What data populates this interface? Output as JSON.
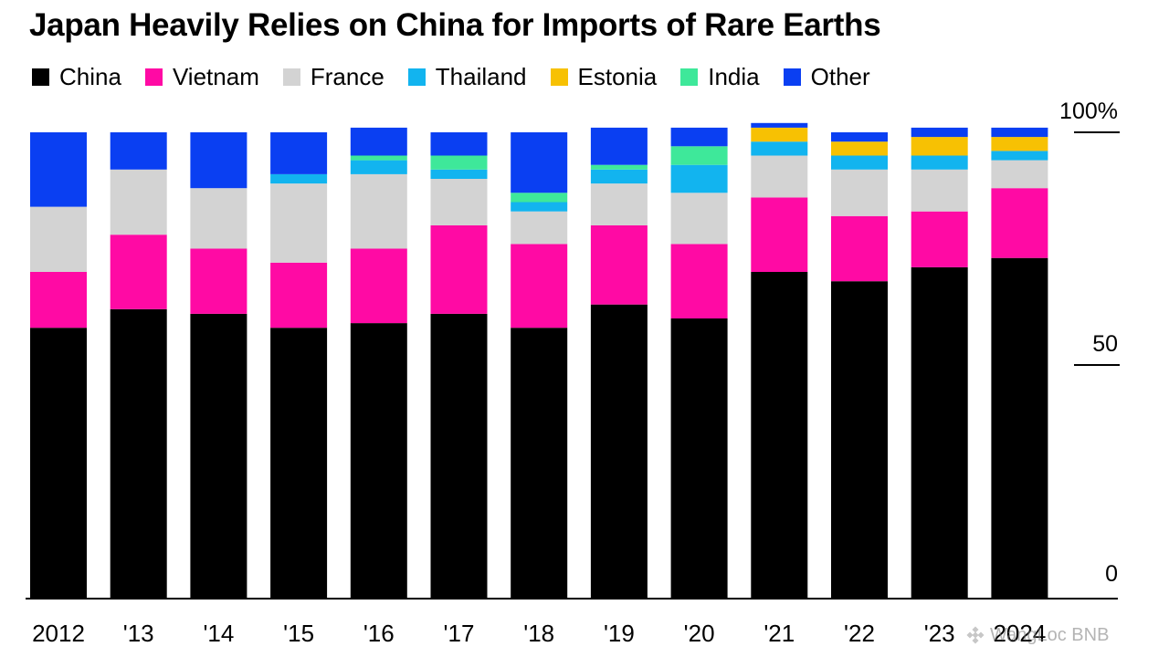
{
  "chart_data": {
    "type": "bar",
    "stacked": true,
    "title": "Japan Heavily Relies on China for Imports of Rare Earths",
    "categories": [
      "2012",
      "'13",
      "'14",
      "'15",
      "'16",
      "'17",
      "'18",
      "'19",
      "'20",
      "'21",
      "'22",
      "'23",
      "2024"
    ],
    "series": [
      {
        "name": "China",
        "color": "#000000",
        "values": [
          58,
          62,
          61,
          58,
          59,
          61,
          58,
          63,
          60,
          70,
          68,
          71,
          73
        ]
      },
      {
        "name": "Vietnam",
        "color": "#ff0aa4",
        "values": [
          12,
          16,
          14,
          14,
          16,
          19,
          18,
          17,
          16,
          16,
          14,
          12,
          15
        ]
      },
      {
        "name": "France",
        "color": "#d3d3d3",
        "values": [
          14,
          14,
          13,
          17,
          16,
          10,
          7,
          9,
          11,
          9,
          10,
          9,
          6
        ]
      },
      {
        "name": "Thailand",
        "color": "#12b4ef",
        "values": [
          0,
          0,
          0,
          2,
          3,
          2,
          2,
          3,
          6,
          3,
          3,
          3,
          2
        ]
      },
      {
        "name": "Estonia",
        "color": "#f7c103",
        "values": [
          0,
          0,
          0,
          0,
          0,
          0,
          0,
          0,
          0,
          3,
          3,
          4,
          3
        ]
      },
      {
        "name": "India",
        "color": "#3ee89a",
        "values": [
          0,
          0,
          0,
          0,
          1,
          3,
          2,
          1,
          4,
          0,
          0,
          0,
          0
        ]
      },
      {
        "name": "Other",
        "color": "#0a3ff2",
        "values": [
          16,
          8,
          12,
          9,
          6,
          5,
          13,
          8,
          4,
          1,
          2,
          2,
          2
        ]
      }
    ],
    "xlabel": "",
    "ylabel": "",
    "ylim": [
      0,
      100
    ],
    "yticks": [
      {
        "value": 0,
        "label": "0"
      },
      {
        "value": 50,
        "label": "50"
      },
      {
        "value": 100,
        "label": "100%"
      }
    ],
    "legend_position": "top-left"
  },
  "watermark": {
    "text": "WangLoc BNB"
  }
}
